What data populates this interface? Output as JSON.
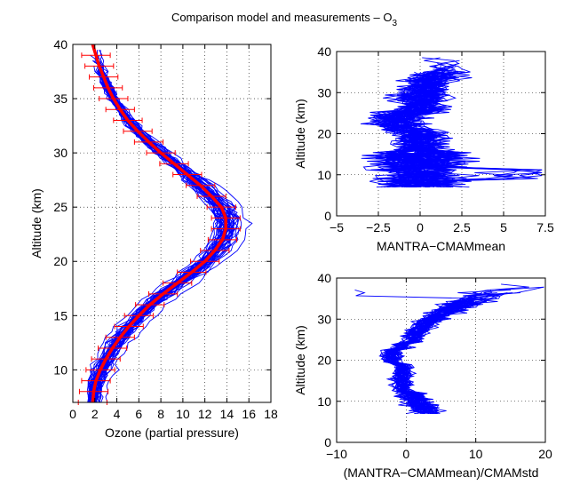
{
  "title": {
    "main": "Comparison model and measurements – O",
    "sub": "3"
  },
  "chart_data": [
    {
      "id": "profiles",
      "type": "line",
      "xlabel": "Ozone (partial pressure)",
      "ylabel": "Altitude (km)",
      "xlim": [
        0,
        18
      ],
      "ylim": [
        7,
        40
      ],
      "xticks": [
        0,
        2,
        4,
        6,
        8,
        10,
        12,
        14,
        16,
        18
      ],
      "yticks": [
        10,
        15,
        20,
        25,
        30,
        35,
        40
      ],
      "xtick_labels": [
        "0",
        "2",
        "4",
        "6",
        "8",
        "10",
        "12",
        "14",
        "16",
        "18"
      ],
      "ytick_labels": [
        "10",
        "15",
        "20",
        "25",
        "30",
        "35",
        "40"
      ],
      "grid": true,
      "mean_profile": {
        "altitude": [
          7,
          8,
          9,
          10,
          11,
          12,
          13,
          14,
          15,
          16,
          17,
          18,
          19,
          20,
          21,
          22,
          23,
          24,
          25,
          26,
          27,
          28,
          29,
          30,
          31,
          32,
          33,
          34,
          35,
          36,
          37,
          38,
          39,
          40
        ],
        "ozone": [
          1.8,
          1.9,
          2.1,
          2.5,
          3.0,
          3.6,
          4.3,
          5.1,
          6.0,
          7.0,
          8.2,
          9.5,
          10.8,
          12.0,
          12.9,
          13.6,
          13.9,
          13.9,
          13.5,
          12.6,
          11.6,
          10.4,
          9.2,
          8.0,
          6.9,
          5.9,
          5.0,
          4.3,
          3.7,
          3.2,
          2.8,
          2.4,
          2.1,
          1.8
        ]
      },
      "mean_error_bar": 1.3,
      "profile_spread": 1.0,
      "profile_count": 45
    },
    {
      "id": "diff-mean",
      "type": "line",
      "xlabel": "MANTRA−CMAMmean",
      "ylabel": "Altitude (km)",
      "xlim": [
        -5,
        7.5
      ],
      "ylim": [
        0,
        40
      ],
      "xticks": [
        -5,
        -2.5,
        0,
        2.5,
        5,
        7.5
      ],
      "yticks": [
        0,
        10,
        20,
        30,
        40
      ],
      "xtick_labels": [
        "−5",
        "−2.5",
        "0",
        "2.5",
        "5",
        "7.5"
      ],
      "ytick_labels": [
        "0",
        "10",
        "20",
        "30",
        "40"
      ],
      "grid": true,
      "profile_altitude_range": [
        7,
        39
      ],
      "profile_count": 45
    },
    {
      "id": "diff-std",
      "type": "line",
      "xlabel": "(MANTRA−CMAMmean)/CMAMstd",
      "ylabel": "Altitude (km)",
      "xlim": [
        -10,
        20
      ],
      "ylim": [
        0,
        40
      ],
      "xticks": [
        -10,
        0,
        10,
        20
      ],
      "yticks": [
        0,
        10,
        20,
        30,
        40
      ],
      "xtick_labels": [
        "−10",
        "0",
        "10",
        "20"
      ],
      "ytick_labels": [
        "0",
        "10",
        "20",
        "30",
        "40"
      ],
      "grid": true,
      "profile_altitude_range": [
        7,
        39
      ],
      "profile_count": 45
    }
  ]
}
